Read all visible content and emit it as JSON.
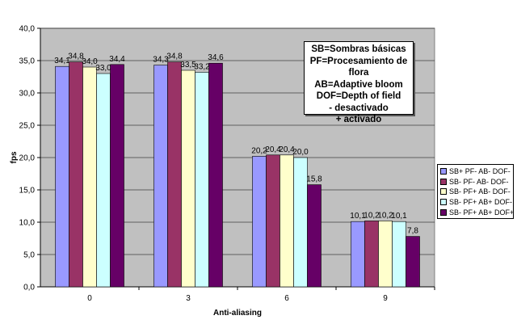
{
  "chart_data": {
    "type": "bar",
    "title": "",
    "xlabel": "Anti-aliasing",
    "ylabel": "fps",
    "ylim": [
      0,
      40
    ],
    "yticks": [
      "0,0",
      "5,0",
      "10,0",
      "15,0",
      "20,0",
      "25,0",
      "30,0",
      "35,0",
      "40,0"
    ],
    "grid": true,
    "legend_position": "right",
    "categories": [
      "0",
      "3",
      "6",
      "9"
    ],
    "series": [
      {
        "name": "SB+ PF- AB- DOF-",
        "color": "#9999ff",
        "values": [
          34.1,
          34.3,
          20.2,
          10.1
        ],
        "labels": [
          "34,1",
          "34,3",
          "20,2",
          "10,1"
        ]
      },
      {
        "name": "SB- PF- AB- DOF-",
        "color": "#993366",
        "values": [
          34.8,
          34.8,
          20.4,
          10.2
        ],
        "labels": [
          "34,8",
          "34,8",
          "20,4",
          "10,2"
        ]
      },
      {
        "name": "SB- PF+ AB- DOF-",
        "color": "#ffffcc",
        "values": [
          34.0,
          33.5,
          20.4,
          10.2
        ],
        "labels": [
          "34,0",
          "33,5",
          "20,4",
          "10,2"
        ]
      },
      {
        "name": "SB- PF+ AB+ DOF-",
        "color": "#ccffff",
        "values": [
          33.0,
          33.2,
          20.0,
          10.1
        ],
        "labels": [
          "33,0",
          "33,2",
          "20,0",
          "10,1"
        ]
      },
      {
        "name": "SB- PF+ AB+ DOF+",
        "color": "#660066",
        "values": [
          34.4,
          34.6,
          15.8,
          7.8
        ],
        "labels": [
          "34,4",
          "34,6",
          "15,8",
          "7,8"
        ]
      }
    ],
    "annotation": [
      "SB=Sombras básicas",
      "PF=Procesamiento de flora",
      "AB=Adaptive bloom",
      "DOF=Depth of field",
      "- desactivado",
      "+ activado"
    ],
    "plot_background": "#c0c0c0"
  }
}
